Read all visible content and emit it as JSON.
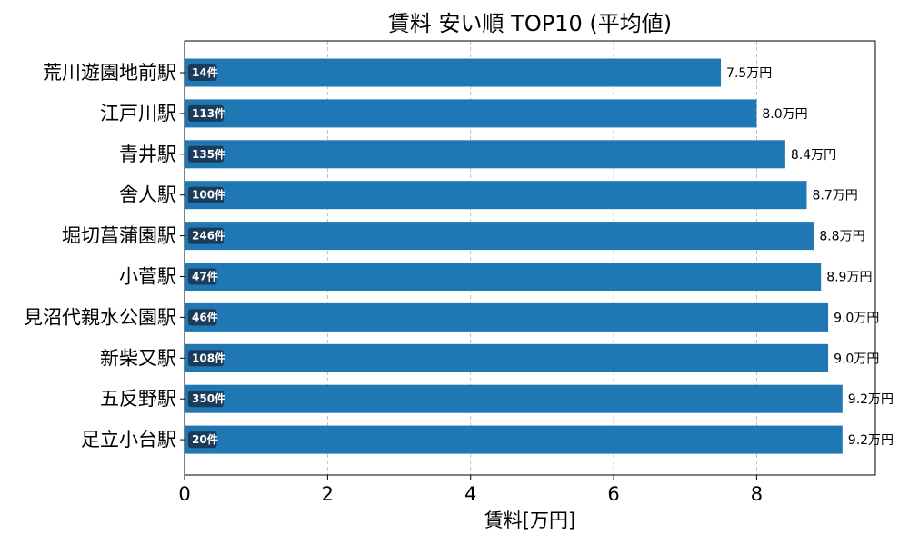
{
  "chart_data": {
    "type": "bar",
    "orientation": "horizontal",
    "title": "賃料 安い順 TOP10 (平均値)",
    "xlabel": "賃料[万円]",
    "ylabel": "",
    "xlim": [
      0,
      9.66
    ],
    "xticks": [
      "0",
      "2",
      "4",
      "6",
      "8"
    ],
    "grid": "x-dashed",
    "categories": [
      "荒川遊園地前駅",
      "江戸川駅",
      "青井駅",
      "舎人駅",
      "堀切菖蒲園駅",
      "小菅駅",
      "見沼代親水公園駅",
      "新柴又駅",
      "五反野駅",
      "足立小台駅"
    ],
    "values": [
      7.5,
      8.0,
      8.4,
      8.7,
      8.8,
      8.9,
      9.0,
      9.0,
      9.2,
      9.2
    ],
    "value_labels": [
      "7.5万円",
      "8.0万円",
      "8.4万円",
      "8.7万円",
      "8.8万円",
      "8.9万円",
      "9.0万円",
      "9.0万円",
      "9.2万円",
      "9.2万円"
    ],
    "counts": [
      "14件",
      "113件",
      "135件",
      "100件",
      "246件",
      "47件",
      "46件",
      "108件",
      "350件",
      "20件"
    ],
    "colors": {
      "bar": "#1f77b4",
      "count_badge": "#1a3c5a",
      "grid": "#b0b0b0"
    }
  }
}
